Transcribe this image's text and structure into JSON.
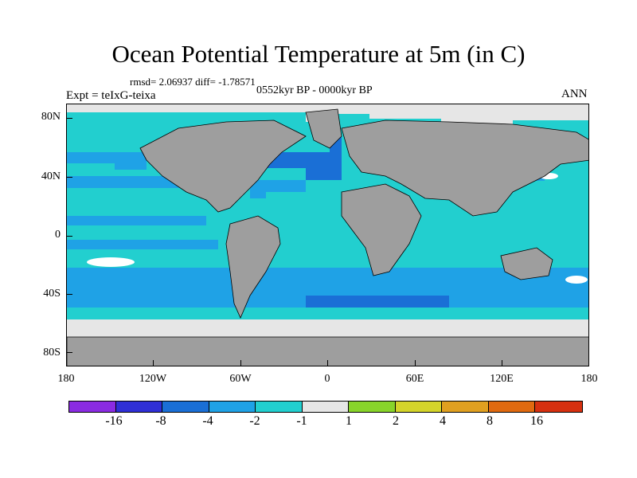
{
  "title": "Ocean Potential Temperature at 5m (in C)",
  "stats": "rmsd= 2.06937 diff= -1.78571",
  "expt": "Expt = teIxG-teixa",
  "period": "0552kyr BP - 0000kyr BP",
  "season": "ANN",
  "lat_labels": [
    "80N",
    "40N",
    "0",
    "40S",
    "80S"
  ],
  "lon_labels": [
    "180",
    "120W",
    "60W",
    "0",
    "60E",
    "120E",
    "180"
  ],
  "colorbar": {
    "colors": [
      "#8a2be2",
      "#2f2fd6",
      "#1a6fd6",
      "#1fa2e6",
      "#22cfcf",
      "#e6e6e6",
      "#88d42a",
      "#d4d42a",
      "#e0a020",
      "#e06a10",
      "#d63010"
    ],
    "labels": [
      "-16",
      "-8",
      "-4",
      "-2",
      "-1",
      "1",
      "2",
      "4",
      "8",
      "16"
    ]
  },
  "legend_colors": {
    "land": "#9e9e9e",
    "ice": "#e6e6e6"
  }
}
